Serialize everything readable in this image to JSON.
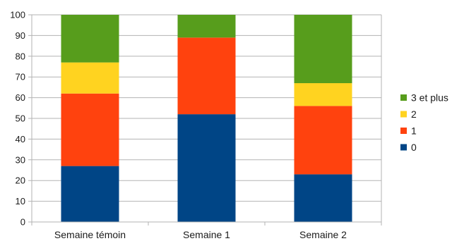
{
  "chart_data": {
    "type": "bar",
    "stacked": true,
    "title": "",
    "xlabel": "",
    "ylabel": "",
    "ylim": [
      0,
      100
    ],
    "yticks": [
      0,
      10,
      20,
      30,
      40,
      50,
      60,
      70,
      80,
      90,
      100
    ],
    "grid": true,
    "legend_position": "right",
    "categories": [
      "Semaine témoin",
      "Semaine 1",
      "Semaine 2"
    ],
    "series": [
      {
        "name": "0",
        "color": "#004586",
        "values": [
          27,
          52,
          23
        ]
      },
      {
        "name": "1",
        "color": "#ff420e",
        "values": [
          35,
          37,
          33
        ]
      },
      {
        "name": "2",
        "color": "#ffd320",
        "values": [
          15,
          0,
          11
        ]
      },
      {
        "name": "3 et plus",
        "color": "#579d1c",
        "values": [
          23,
          11,
          33
        ]
      }
    ],
    "legend_order": [
      "3 et plus",
      "2",
      "1",
      "0"
    ]
  }
}
